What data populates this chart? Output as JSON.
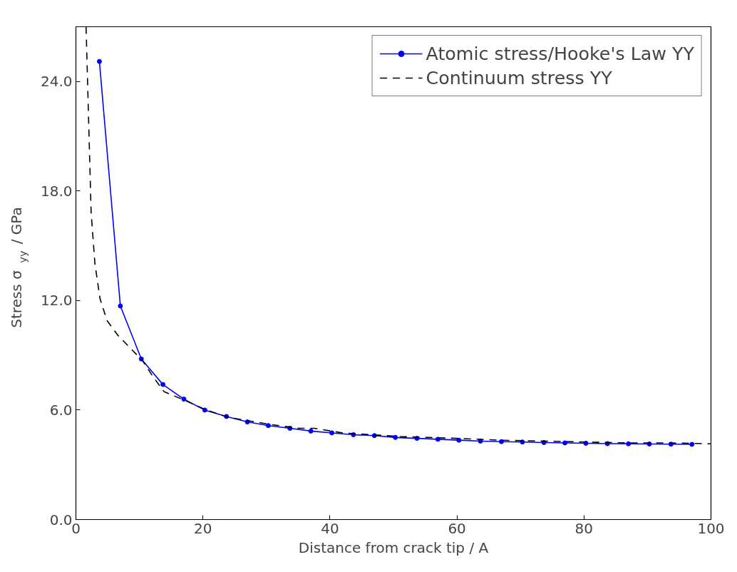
{
  "chart_data": {
    "type": "line",
    "xlabel": "Distance from crack tip / A",
    "ylabel": "Stress σ$_{yy}$ / GPa",
    "xlim": [
      0,
      100
    ],
    "ylim": [
      0,
      27
    ],
    "xticks": [
      0,
      20,
      40,
      60,
      80,
      100
    ],
    "yticks": [
      {
        "value": 0,
        "label": "0.0"
      },
      {
        "value": 6,
        "label": "6.0"
      },
      {
        "value": 12,
        "label": "12.0"
      },
      {
        "value": 18,
        "label": "18.0"
      },
      {
        "value": 24,
        "label": "24.0"
      }
    ],
    "grid": false,
    "legend": "top right",
    "series": [
      {
        "name": "Atomic stress/Hooke's Law YY",
        "color": "#0000ff",
        "marker": "circle",
        "line_style": "solid",
        "x": [
          3.7,
          7.0,
          10.3,
          13.7,
          17.0,
          20.3,
          23.7,
          27.0,
          30.3,
          33.7,
          37.0,
          40.3,
          43.7,
          47.0,
          50.3,
          53.7,
          57.0,
          60.3,
          63.7,
          67.0,
          70.3,
          73.7,
          77.0,
          80.3,
          83.7,
          87.0,
          90.3,
          93.7,
          97.0
        ],
        "values": [
          25.1,
          11.7,
          8.8,
          7.4,
          6.6,
          6.0,
          5.65,
          5.35,
          5.15,
          5.0,
          4.85,
          4.75,
          4.65,
          4.6,
          4.5,
          4.45,
          4.4,
          4.35,
          4.3,
          4.27,
          4.25,
          4.22,
          4.2,
          4.18,
          4.16,
          4.15,
          4.14,
          4.13,
          4.12
        ]
      },
      {
        "name": "Continuum stress YY",
        "color": "#000000",
        "marker": "none",
        "line_style": "dashed",
        "x": [
          1.6,
          2.4,
          3.0,
          3.8,
          4.9,
          6.6,
          10.5,
          12.2,
          13.9,
          16.7,
          20.6,
          24,
          27.4,
          30.8,
          35.2,
          37.5,
          42,
          46.5,
          51,
          55.4,
          60,
          66.7,
          73.4,
          80,
          87,
          93.6,
          100
        ],
        "values": [
          27,
          16.8,
          14.0,
          12.1,
          10.9,
          10.1,
          8.7,
          7.8,
          7.0,
          6.6,
          6.0,
          5.6,
          5.4,
          5.2,
          5.0,
          5.0,
          4.75,
          4.65,
          4.55,
          4.5,
          4.45,
          4.35,
          4.3,
          4.25,
          4.2,
          4.2,
          4.15
        ]
      }
    ]
  }
}
